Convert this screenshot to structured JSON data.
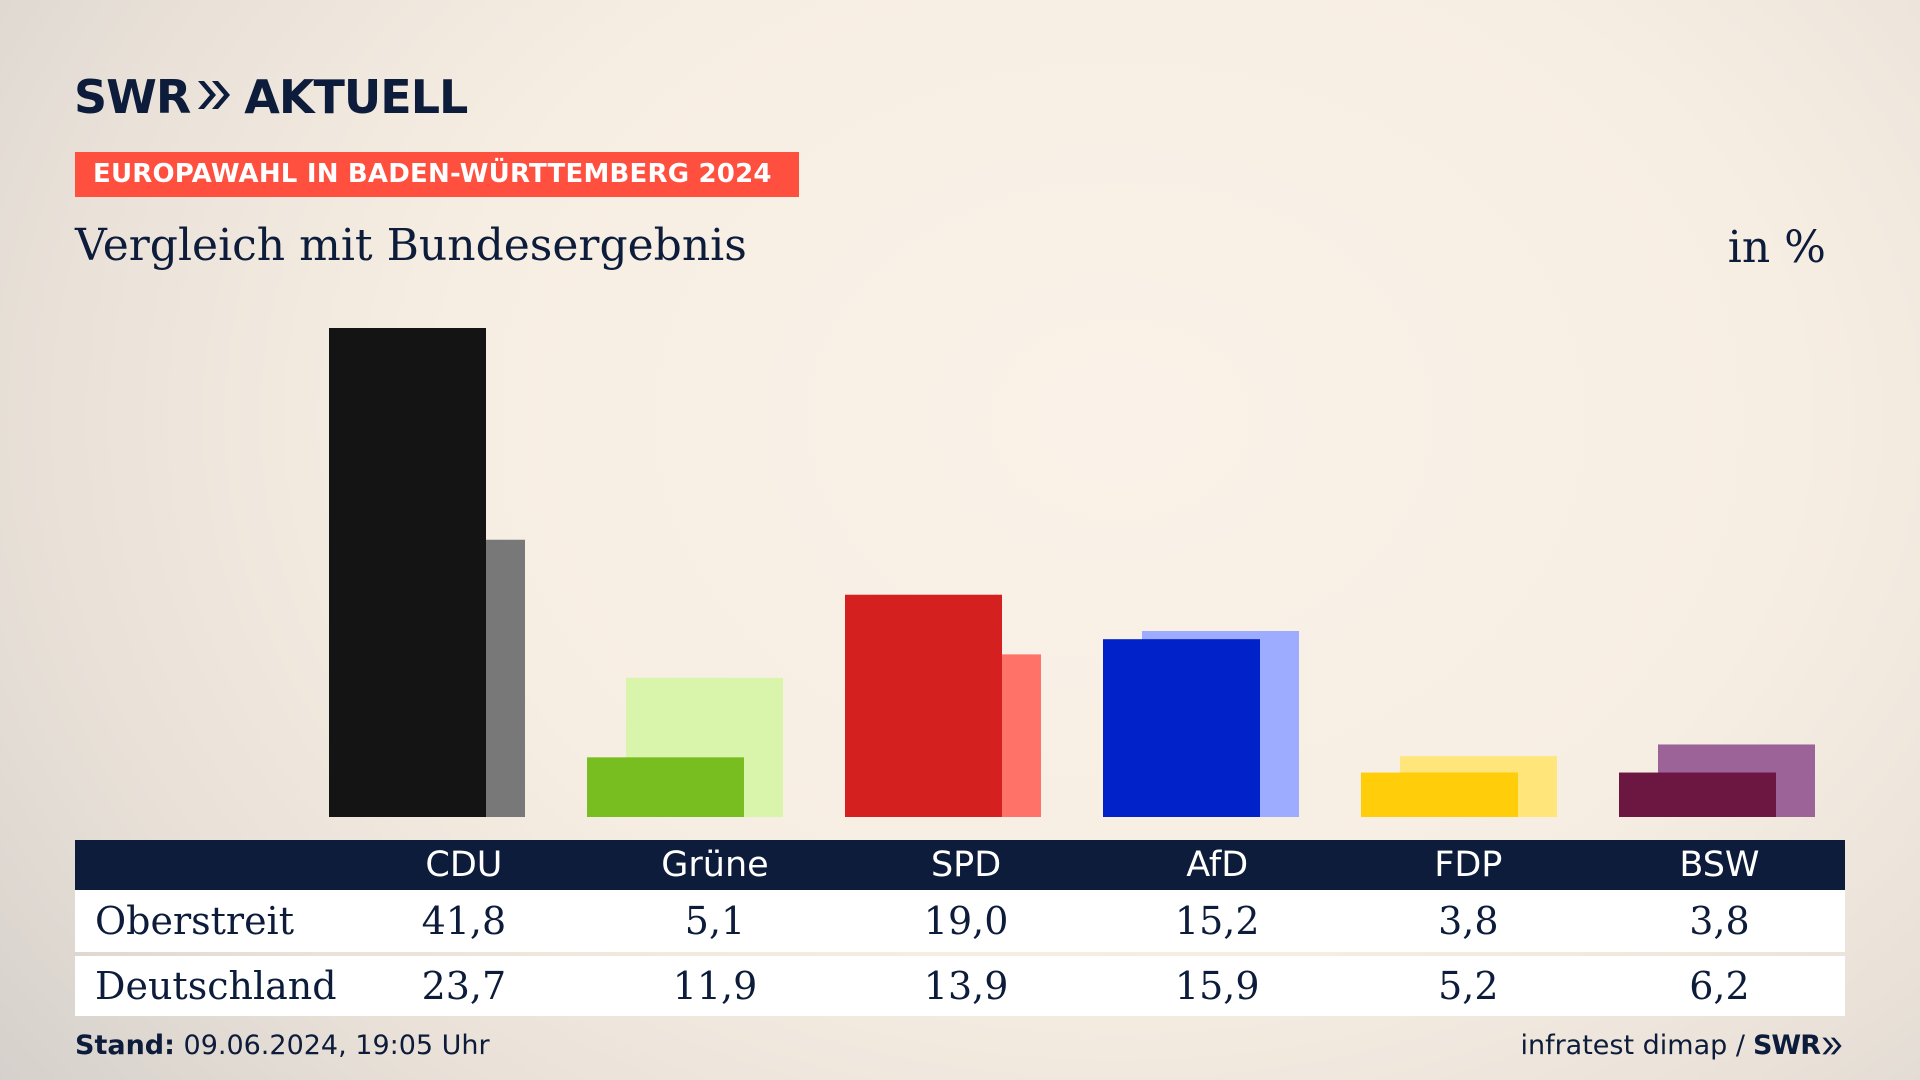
{
  "brand": {
    "swr": "SWR",
    "aktuell": "AKTUELL"
  },
  "kicker": "EUROPAWAHL IN BADEN-WÜRTTEMBERG 2024",
  "title": "Vergleich mit Bundesergebnis",
  "unit": "in %",
  "footer": {
    "stand_label": "Stand:",
    "stand_value": "09.06.2024, 19:05 Uhr",
    "source": "infratest dimap /",
    "source_brand": "SWR"
  },
  "table": {
    "rows": [
      {
        "label": "Oberstreit",
        "values": [
          "41,8",
          "5,1",
          "19,0",
          "15,2",
          "3,8",
          "3,8"
        ]
      },
      {
        "label": "Deutschland",
        "values": [
          "23,7",
          "11,9",
          "13,9",
          "15,9",
          "5,2",
          "6,2"
        ]
      }
    ]
  },
  "chart_data": {
    "type": "bar",
    "categories": [
      "CDU",
      "Grüne",
      "SPD",
      "AfD",
      "FDP",
      "BSW"
    ],
    "series": [
      {
        "name": "Oberstreit",
        "values": [
          41.8,
          5.1,
          19.0,
          15.2,
          3.8,
          3.8
        ]
      },
      {
        "name": "Deutschland",
        "values": [
          23.7,
          11.9,
          13.9,
          15.9,
          5.2,
          6.2
        ]
      }
    ],
    "colors": {
      "primary": [
        "#141414",
        "#78be20",
        "#d52020",
        "#0022c8",
        "#ffcd0a",
        "#6b1741"
      ],
      "secondary": [
        "#787878",
        "#d8f5ab",
        "#ff7268",
        "#9eacff",
        "#ffe57a",
        "#9c6399"
      ]
    },
    "ylim": [
      0,
      41.8
    ],
    "grid": false,
    "legend": "table-below"
  }
}
